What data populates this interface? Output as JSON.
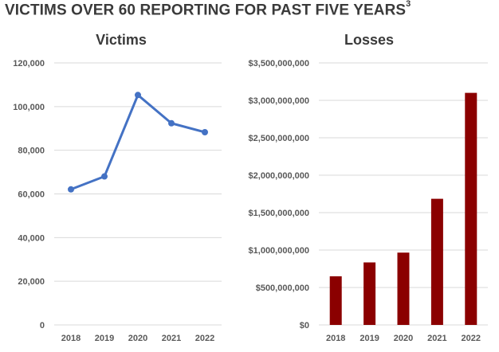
{
  "page_title": "VICTIMS OVER 60 REPORTING FOR PAST FIVE YEARS",
  "page_title_footnote": "3",
  "colors": {
    "line": "#4472c4",
    "bar": "#8b0000",
    "grid": "#d9d9d9",
    "text": "#595959"
  },
  "chart_data": [
    {
      "type": "line",
      "title": "Victims",
      "categories": [
        "2018",
        "2019",
        "2020",
        "2021",
        "2022"
      ],
      "series": [
        {
          "values": [
            62085,
            68013,
            105301,
            92371,
            88262
          ]
        }
      ],
      "ylim": [
        0,
        120000
      ],
      "yticks": [
        0,
        20000,
        40000,
        60000,
        80000,
        100000,
        120000
      ],
      "ytick_labels": [
        "0",
        "20,000",
        "40,000",
        "60,000",
        "80,000",
        "100,000",
        "120,000"
      ],
      "grid": true,
      "legend": "none"
    },
    {
      "type": "bar",
      "title": "Losses",
      "categories": [
        "2018",
        "2019",
        "2020",
        "2021",
        "2022"
      ],
      "values": [
        650000000,
        835000000,
        966000000,
        1685000000,
        3100000000
      ],
      "ylim": [
        0,
        3500000000
      ],
      "yticks": [
        0,
        500000000,
        1000000000,
        1500000000,
        2000000000,
        2500000000,
        3000000000,
        3500000000
      ],
      "ytick_labels": [
        "$0",
        "$500,000,000",
        "$1,000,000,000",
        "$1,500,000,000",
        "$2,000,000,000",
        "$2,500,000,000",
        "$3,000,000,000",
        "$3,500,000,000"
      ],
      "grid": true,
      "legend": "none"
    }
  ]
}
